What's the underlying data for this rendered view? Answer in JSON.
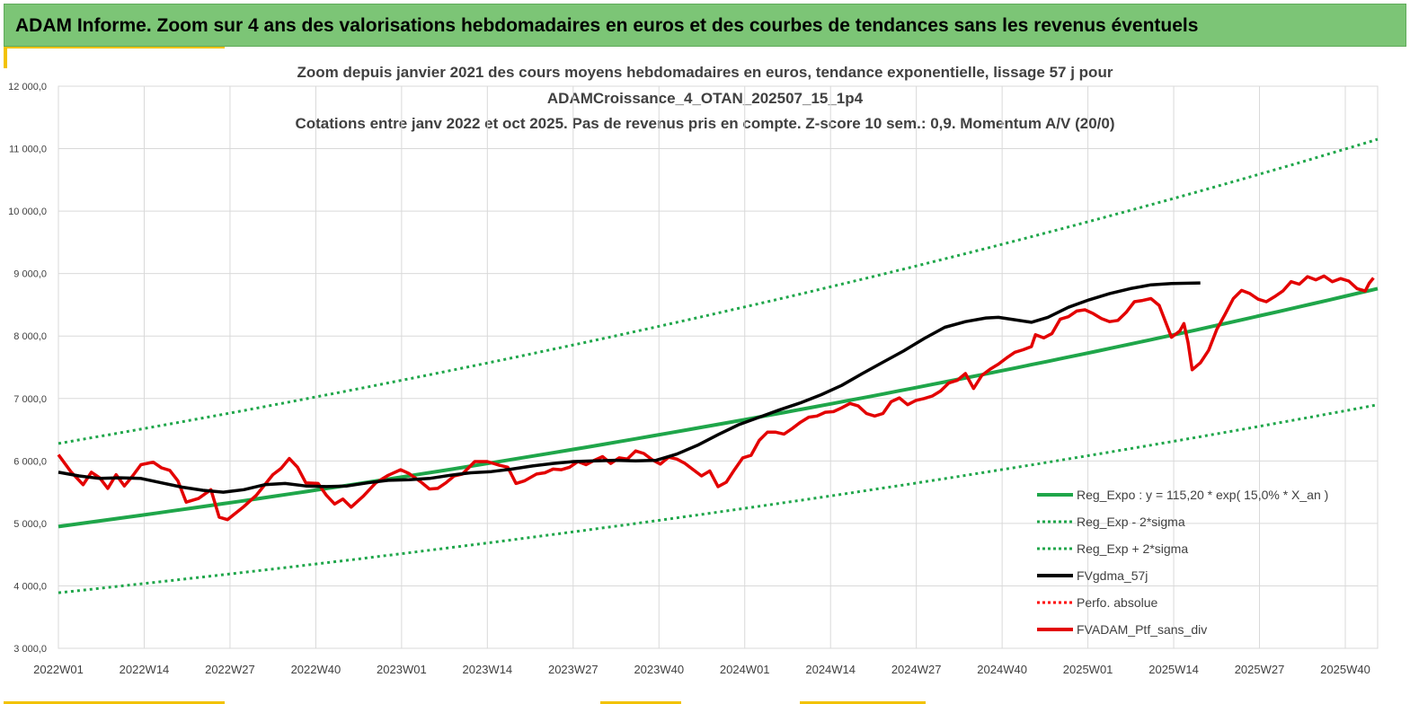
{
  "banner": {
    "title": "ADAM Informe. Zoom sur 4 ans des valorisations hebdomadaires en euros et des courbes de tendances sans les revenus éventuels"
  },
  "chart_data": {
    "type": "line",
    "title_lines": [
      "Zoom depuis janvier 2021 des cours moyens hebdomadaires  en euros, tendance exponentielle, lissage 57 j pour",
      "ADAMCroissance_4_OTAN_202507_15_1p4",
      "Cotations  entre janv 2022 et oct 2025. Pas de revenus pris en compte. Z-score 10 sem.: 0,9. Momentum A/V (20/0)"
    ],
    "ylim": [
      3000,
      12000
    ],
    "y_ticks": [
      "3 000,0",
      "4 000,0",
      "5 000,0",
      "6 000,0",
      "7 000,0",
      "8 000,0",
      "9 000,0",
      "10 000,0",
      "11 000,0",
      "12 000,0"
    ],
    "x_ticks": [
      "2022W01",
      "2022W14",
      "2022W27",
      "2022W40",
      "2023W01",
      "2023W14",
      "2023W27",
      "2023W40",
      "2024W01",
      "2024W14",
      "2024W27",
      "2024W40",
      "2025W01",
      "2025W14",
      "2025W27",
      "2025W40"
    ],
    "week_count": 200,
    "grid": true,
    "legend_position": "bottom-right",
    "series": [
      {
        "name": "Reg_Expo : y = 115,20 * exp( 15,0% *  X_an )",
        "color": "#1fa64a",
        "style": "solid",
        "start": 4950,
        "end": 8760
      },
      {
        "name": "Reg_Exp - 2*sigma",
        "color": "#1fa64a",
        "style": "dotted",
        "start": 3890,
        "end": 6900
      },
      {
        "name": "Reg_Exp + 2*sigma",
        "color": "#1fa64a",
        "style": "dotted",
        "start": 6280,
        "end": 11150
      },
      {
        "name": "FVgdma_57j",
        "color": "#000000",
        "style": "solid",
        "points": [
          [
            0,
            5820
          ],
          [
            5,
            5760
          ],
          [
            10,
            5720
          ],
          [
            15,
            5730
          ],
          [
            20,
            5720
          ],
          [
            25,
            5650
          ],
          [
            30,
            5580
          ],
          [
            35,
            5530
          ],
          [
            40,
            5500
          ],
          [
            45,
            5540
          ],
          [
            50,
            5620
          ],
          [
            55,
            5640
          ],
          [
            60,
            5600
          ],
          [
            65,
            5590
          ],
          [
            70,
            5600
          ],
          [
            75,
            5650
          ],
          [
            80,
            5690
          ],
          [
            85,
            5700
          ],
          [
            90,
            5720
          ],
          [
            95,
            5770
          ],
          [
            100,
            5810
          ],
          [
            105,
            5830
          ],
          [
            110,
            5870
          ],
          [
            115,
            5920
          ],
          [
            120,
            5960
          ],
          [
            125,
            5990
          ],
          [
            130,
            6000
          ],
          [
            135,
            6010
          ],
          [
            140,
            6000
          ],
          [
            145,
            6010
          ],
          [
            150,
            6110
          ],
          [
            155,
            6250
          ],
          [
            160,
            6420
          ],
          [
            165,
            6580
          ],
          [
            170,
            6700
          ],
          [
            175,
            6820
          ],
          [
            180,
            6930
          ],
          [
            185,
            7060
          ],
          [
            190,
            7210
          ],
          [
            195,
            7400
          ],
          [
            200,
            7580
          ],
          [
            205,
            7760
          ],
          [
            210,
            7960
          ],
          [
            215,
            8140
          ],
          [
            220,
            8230
          ],
          [
            225,
            8290
          ],
          [
            228,
            8300
          ],
          [
            232,
            8260
          ],
          [
            236,
            8220
          ],
          [
            240,
            8300
          ],
          [
            245,
            8460
          ],
          [
            250,
            8580
          ],
          [
            255,
            8680
          ],
          [
            260,
            8760
          ],
          [
            265,
            8820
          ],
          [
            270,
            8840
          ],
          [
            277,
            8850
          ]
        ]
      },
      {
        "name": "Perfo. absolue",
        "color": "#ff0000",
        "style": "dotted",
        "points": []
      },
      {
        "name": "FVADAM_Ptf_sans_div",
        "color": "#e30000",
        "style": "solid",
        "points": [
          [
            0,
            6100
          ],
          [
            3,
            5830
          ],
          [
            6,
            5620
          ],
          [
            8,
            5820
          ],
          [
            10,
            5730
          ],
          [
            12,
            5560
          ],
          [
            14,
            5780
          ],
          [
            16,
            5600
          ],
          [
            18,
            5760
          ],
          [
            20,
            5940
          ],
          [
            23,
            5980
          ],
          [
            25,
            5890
          ],
          [
            27,
            5850
          ],
          [
            29,
            5680
          ],
          [
            31,
            5340
          ],
          [
            34,
            5400
          ],
          [
            37,
            5540
          ],
          [
            39,
            5100
          ],
          [
            41,
            5060
          ],
          [
            45,
            5270
          ],
          [
            48,
            5450
          ],
          [
            52,
            5780
          ],
          [
            54,
            5880
          ],
          [
            56,
            6040
          ],
          [
            58,
            5900
          ],
          [
            60,
            5650
          ],
          [
            63,
            5640
          ],
          [
            65,
            5450
          ],
          [
            67,
            5310
          ],
          [
            69,
            5390
          ],
          [
            71,
            5260
          ],
          [
            74,
            5440
          ],
          [
            77,
            5650
          ],
          [
            80,
            5770
          ],
          [
            83,
            5860
          ],
          [
            85,
            5800
          ],
          [
            88,
            5660
          ],
          [
            90,
            5550
          ],
          [
            92,
            5560
          ],
          [
            94,
            5650
          ],
          [
            96,
            5760
          ],
          [
            98,
            5790
          ],
          [
            101,
            5990
          ],
          [
            104,
            5990
          ],
          [
            107,
            5930
          ],
          [
            109,
            5900
          ],
          [
            111,
            5640
          ],
          [
            113,
            5680
          ],
          [
            116,
            5790
          ],
          [
            118,
            5810
          ],
          [
            120,
            5870
          ],
          [
            122,
            5860
          ],
          [
            124,
            5900
          ],
          [
            126,
            5990
          ],
          [
            128,
            5940
          ],
          [
            130,
            6010
          ],
          [
            132,
            6070
          ],
          [
            134,
            5960
          ],
          [
            136,
            6050
          ],
          [
            138,
            6030
          ],
          [
            140,
            6160
          ],
          [
            142,
            6120
          ],
          [
            144,
            6020
          ],
          [
            146,
            5950
          ],
          [
            148,
            6060
          ],
          [
            150,
            6030
          ],
          [
            152,
            5960
          ],
          [
            154,
            5860
          ],
          [
            156,
            5760
          ],
          [
            158,
            5840
          ],
          [
            160,
            5590
          ],
          [
            162,
            5660
          ],
          [
            164,
            5860
          ],
          [
            166,
            6050
          ],
          [
            168,
            6090
          ],
          [
            170,
            6330
          ],
          [
            172,
            6460
          ],
          [
            174,
            6460
          ],
          [
            176,
            6430
          ],
          [
            178,
            6520
          ],
          [
            180,
            6620
          ],
          [
            182,
            6700
          ],
          [
            184,
            6720
          ],
          [
            186,
            6780
          ],
          [
            188,
            6790
          ],
          [
            190,
            6850
          ],
          [
            192,
            6920
          ],
          [
            194,
            6880
          ],
          [
            196,
            6760
          ],
          [
            198,
            6720
          ],
          [
            200,
            6760
          ],
          [
            202,
            6950
          ],
          [
            204,
            7010
          ],
          [
            206,
            6900
          ],
          [
            208,
            6970
          ],
          [
            210,
            7000
          ],
          [
            212,
            7040
          ],
          [
            214,
            7120
          ],
          [
            216,
            7250
          ],
          [
            218,
            7290
          ],
          [
            220,
            7400
          ],
          [
            222,
            7160
          ],
          [
            224,
            7370
          ],
          [
            226,
            7470
          ],
          [
            228,
            7550
          ],
          [
            230,
            7650
          ],
          [
            232,
            7740
          ],
          [
            234,
            7780
          ],
          [
            236,
            7830
          ],
          [
            237,
            8020
          ],
          [
            239,
            7970
          ],
          [
            241,
            8040
          ],
          [
            243,
            8270
          ],
          [
            245,
            8310
          ],
          [
            247,
            8400
          ],
          [
            249,
            8420
          ],
          [
            251,
            8360
          ],
          [
            253,
            8280
          ],
          [
            255,
            8230
          ],
          [
            257,
            8250
          ],
          [
            259,
            8380
          ],
          [
            261,
            8550
          ],
          [
            263,
            8570
          ],
          [
            265,
            8600
          ],
          [
            267,
            8490
          ],
          [
            268,
            8320
          ],
          [
            270,
            7980
          ],
          [
            272,
            8080
          ],
          [
            273,
            8200
          ],
          [
            274,
            7900
          ],
          [
            275,
            7460
          ],
          [
            277,
            7570
          ],
          [
            279,
            7770
          ],
          [
            281,
            8110
          ],
          [
            283,
            8350
          ],
          [
            285,
            8600
          ],
          [
            287,
            8730
          ],
          [
            289,
            8680
          ],
          [
            291,
            8590
          ],
          [
            293,
            8550
          ],
          [
            295,
            8630
          ],
          [
            297,
            8720
          ],
          [
            299,
            8870
          ],
          [
            301,
            8830
          ],
          [
            303,
            8950
          ],
          [
            305,
            8900
          ],
          [
            307,
            8960
          ],
          [
            309,
            8870
          ],
          [
            311,
            8920
          ],
          [
            313,
            8880
          ],
          [
            315,
            8760
          ],
          [
            317,
            8720
          ],
          [
            318,
            8850
          ],
          [
            319,
            8930
          ]
        ]
      }
    ]
  }
}
